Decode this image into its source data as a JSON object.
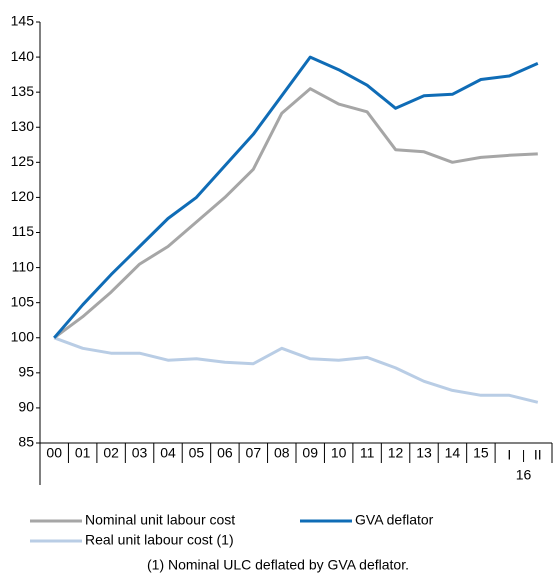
{
  "chart_data": {
    "type": "line",
    "categories": [
      "00",
      "01",
      "02",
      "03",
      "04",
      "05",
      "06",
      "07",
      "08",
      "09",
      "10",
      "11",
      "12",
      "13",
      "14",
      "15",
      "I",
      "II"
    ],
    "category_group": {
      "label": "16",
      "from": 16,
      "to": 17
    },
    "series": [
      {
        "name": "Nominal unit labour cost",
        "color": "#a6a6a6",
        "values": [
          100,
          103,
          106.5,
          110.5,
          113,
          116.5,
          120,
          124,
          132,
          135.5,
          133.3,
          132.2,
          126.8,
          126.5,
          125,
          125.7,
          126,
          126.2
        ]
      },
      {
        "name": "GVA deflator",
        "color": "#0f6cb6",
        "values": [
          100,
          104.7,
          109,
          113,
          117,
          120,
          124.5,
          129,
          134.5,
          140,
          138.2,
          136,
          132.7,
          134.5,
          134.7,
          136.8,
          137.3,
          139.1
        ]
      },
      {
        "name": "Real unit labour cost (1)",
        "color": "#b9cde5",
        "values": [
          100,
          98.5,
          97.8,
          97.8,
          96.8,
          97,
          96.5,
          96.3,
          98.5,
          97,
          96.8,
          97.2,
          95.7,
          93.8,
          92.5,
          91.8,
          91.8,
          90.8
        ]
      }
    ],
    "ylim": [
      85,
      145
    ],
    "yticks": [
      85,
      90,
      95,
      100,
      105,
      110,
      115,
      120,
      125,
      130,
      135,
      140,
      145
    ],
    "note": "(1) Nominal ULC deflated by GVA deflator."
  }
}
